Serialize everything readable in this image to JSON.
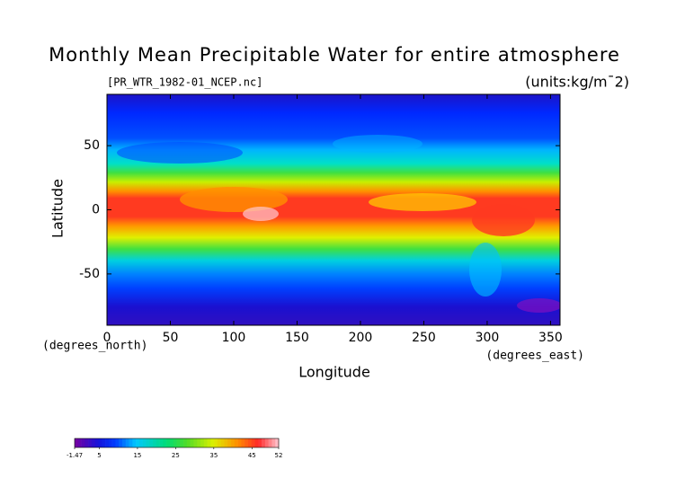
{
  "chart_data": {
    "type": "contour-map",
    "title": "Monthly Mean Precipitable Water for entire atmosphere",
    "subtitle": "[PR_WTR_1982-01_NCEP.nc]",
    "units": "(units:kg/m¯2)",
    "x_label": "Longitude",
    "y_label": "Latitude",
    "x_unit": "(degrees_east)",
    "y_unit": "(degrees_north)",
    "xlim": [
      0,
      357.5
    ],
    "ylim": [
      -90,
      90
    ],
    "xticks": [
      0,
      50,
      100,
      150,
      200,
      250,
      300,
      350
    ],
    "yticks": [
      -50,
      0,
      50
    ],
    "colorbar": {
      "lim": [
        -1.47,
        52
      ],
      "ticks": [
        -1.47,
        5,
        15,
        25,
        35,
        45,
        52
      ]
    }
  }
}
